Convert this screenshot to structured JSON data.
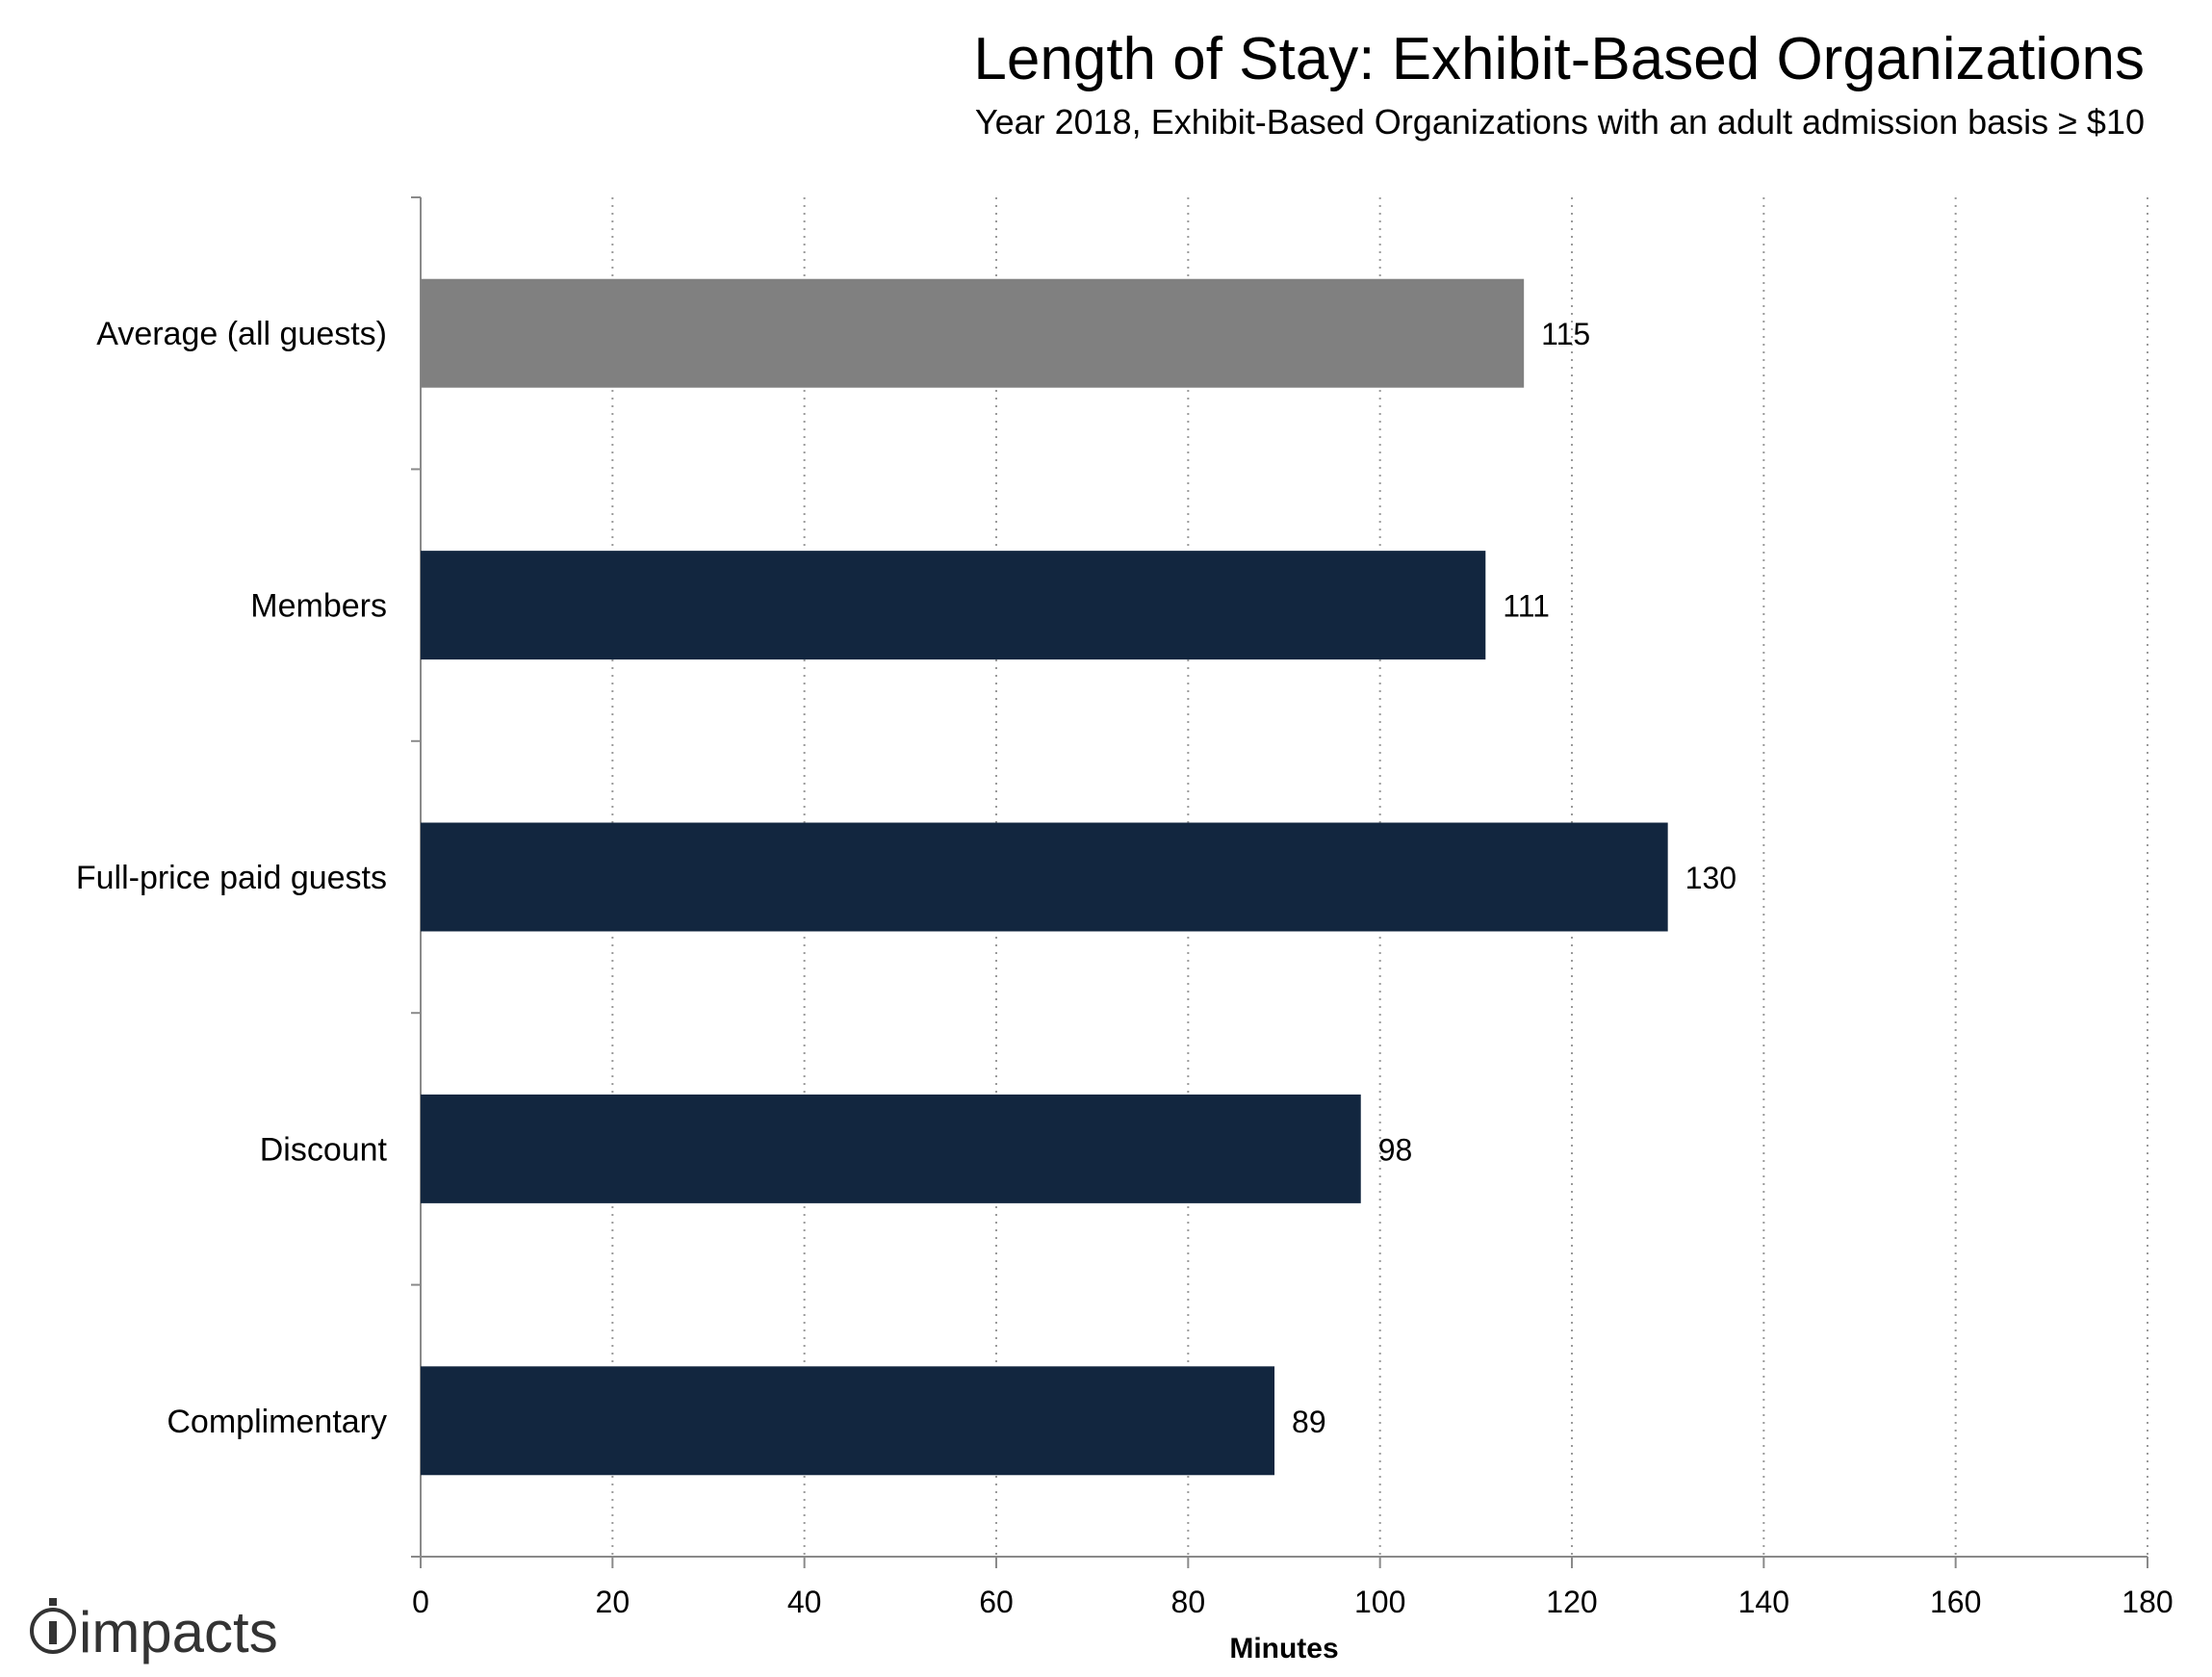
{
  "chart_data": {
    "type": "bar",
    "orientation": "horizontal",
    "title": "Length of Stay: Exhibit-Based Organizations",
    "subtitle": "Year 2018, Exhibit-Based Organizations with an adult admission basis ≥ $10",
    "xlabel": "Minutes",
    "ylabel": "",
    "categories": [
      "Average (all guests)",
      "Members",
      "Full-price paid guests",
      "Discount",
      "Complimentary"
    ],
    "values": [
      115,
      111,
      130,
      98,
      89
    ],
    "bar_colors": [
      "#808080",
      "#12263f",
      "#12263f",
      "#12263f",
      "#12263f"
    ],
    "xlim": [
      0,
      180
    ],
    "xticks": [
      "0",
      "20",
      "40",
      "60",
      "80",
      "100",
      "120",
      "140",
      "160",
      "180"
    ],
    "grid": "vertical dotted",
    "data_labels": true
  },
  "logo": {
    "text": "impacts",
    "icon": "impacts-i-logo-icon",
    "color": "#333333"
  }
}
